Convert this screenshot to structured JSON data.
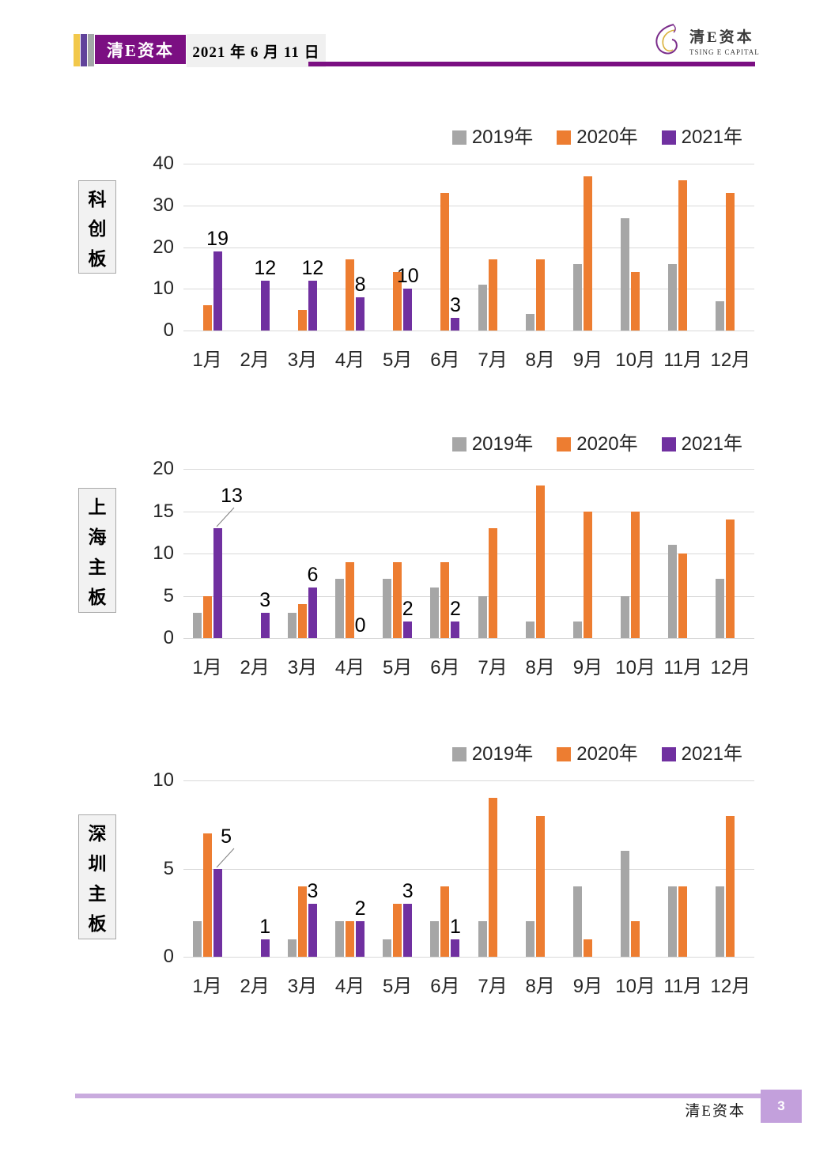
{
  "header": {
    "brand": "清E资本",
    "date": "2021 年 6 月 11 日",
    "logo_title": "清E资本",
    "logo_subtitle": "TSING E CAPITAL"
  },
  "footer": {
    "brand": "清E资本",
    "page_number": "3"
  },
  "colors": {
    "series_2019": "#A6A6A6",
    "series_2020": "#ED7D31",
    "series_2021": "#7030A0",
    "gridline": "#D9D9D9",
    "header_purple": "#7B0F82",
    "stripe_yellow": "#F2C84B",
    "stripe_purple": "#61439B",
    "stripe_gray": "#A3A7A8",
    "footer_line": "#C9ABDE",
    "page_badge": "#C3A0DC"
  },
  "chart_data": [
    {
      "type": "bar",
      "board_label": "科创板",
      "categories": [
        "1月",
        "2月",
        "3月",
        "4月",
        "5月",
        "6月",
        "7月",
        "8月",
        "9月",
        "10月",
        "11月",
        "12月"
      ],
      "ylim": [
        0,
        40
      ],
      "yticks": [
        0,
        10,
        20,
        30,
        40
      ],
      "grid": true,
      "legend_position": "top-right",
      "series": [
        {
          "name": "2019年",
          "color": "#A6A6A6",
          "values": [
            0,
            0,
            0,
            0,
            0,
            0,
            11,
            4,
            16,
            27,
            16,
            7
          ]
        },
        {
          "name": "2020年",
          "color": "#ED7D31",
          "values": [
            6,
            0,
            5,
            17,
            14,
            33,
            17,
            17,
            37,
            14,
            36,
            33
          ]
        },
        {
          "name": "2021年",
          "color": "#7030A0",
          "values": [
            19,
            12,
            12,
            8,
            10,
            3,
            null,
            null,
            null,
            null,
            null,
            null
          ],
          "data_labels": [
            "19",
            "12",
            "12",
            "8",
            "10",
            "3",
            "",
            "",
            "",
            "",
            "",
            ""
          ],
          "label_leader_months": []
        }
      ]
    },
    {
      "type": "bar",
      "board_label": "上海主板",
      "categories": [
        "1月",
        "2月",
        "3月",
        "4月",
        "5月",
        "6月",
        "7月",
        "8月",
        "9月",
        "10月",
        "11月",
        "12月"
      ],
      "ylim": [
        0,
        20
      ],
      "yticks": [
        0,
        5,
        10,
        15,
        20
      ],
      "grid": true,
      "legend_position": "top-right",
      "series": [
        {
          "name": "2019年",
          "color": "#A6A6A6",
          "values": [
            3,
            0,
            3,
            7,
            7,
            6,
            5,
            2,
            2,
            5,
            11,
            7
          ]
        },
        {
          "name": "2020年",
          "color": "#ED7D31",
          "values": [
            5,
            0,
            4,
            9,
            9,
            9,
            13,
            18,
            15,
            15,
            10,
            14
          ]
        },
        {
          "name": "2021年",
          "color": "#7030A0",
          "values": [
            13,
            3,
            6,
            0,
            2,
            2,
            null,
            null,
            null,
            null,
            null,
            null
          ],
          "data_labels": [
            "13",
            "3",
            "6",
            "0",
            "2",
            "2",
            "",
            "",
            "",
            "",
            "",
            ""
          ],
          "label_leader_months": [
            "1月"
          ]
        }
      ]
    },
    {
      "type": "bar",
      "board_label": "深圳主板",
      "categories": [
        "1月",
        "2月",
        "3月",
        "4月",
        "5月",
        "6月",
        "7月",
        "8月",
        "9月",
        "10月",
        "11月",
        "12月"
      ],
      "ylim": [
        0,
        10
      ],
      "yticks": [
        0,
        5,
        10
      ],
      "grid": true,
      "legend_position": "top-right",
      "series": [
        {
          "name": "2019年",
          "color": "#A6A6A6",
          "values": [
            2,
            0,
            1,
            2,
            1,
            2,
            2,
            2,
            4,
            6,
            4,
            4
          ]
        },
        {
          "name": "2020年",
          "color": "#ED7D31",
          "values": [
            7,
            0,
            4,
            2,
            3,
            4,
            9,
            8,
            1,
            2,
            4,
            8
          ]
        },
        {
          "name": "2021年",
          "color": "#7030A0",
          "values": [
            5,
            1,
            3,
            2,
            3,
            1,
            null,
            null,
            null,
            null,
            null,
            null
          ],
          "data_labels": [
            "5",
            "1",
            "3",
            "2",
            "3",
            "1",
            "",
            "",
            "",
            "",
            "",
            ""
          ],
          "label_leader_months": [
            "1月"
          ]
        }
      ]
    }
  ]
}
